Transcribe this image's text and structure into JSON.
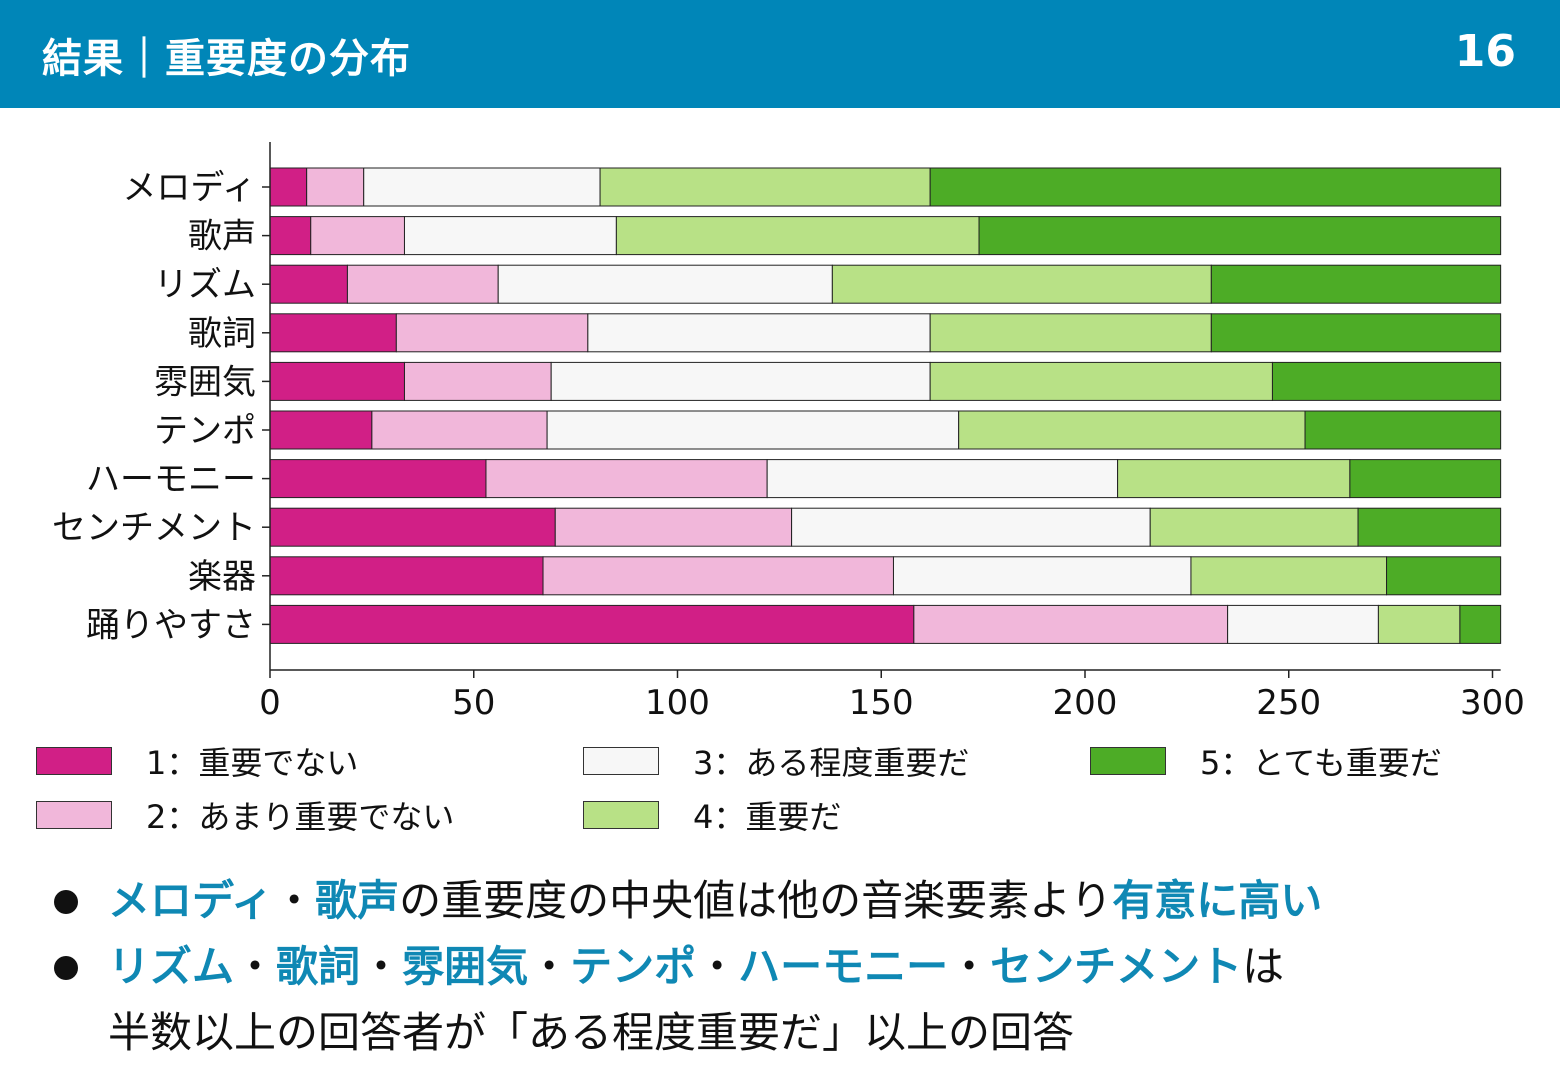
{
  "header": {
    "title": "結果｜重要度の分布",
    "page_number": "16"
  },
  "colors": {
    "header_bg": "#0086b8",
    "highlight": "#0f88b4"
  },
  "chart_data": {
    "type": "bar",
    "orientation": "horizontal",
    "stacked": true,
    "categories": [
      "メロディ",
      "歌声",
      "リズム",
      "歌詞",
      "雰囲気",
      "テンポ",
      "ハーモニー",
      "センチメント",
      "楽器",
      "踊りやすさ"
    ],
    "series": [
      {
        "name": "1：重要でない",
        "color": "#d11f86",
        "values": [
          9,
          10,
          19,
          31,
          33,
          25,
          53,
          70,
          67,
          158
        ]
      },
      {
        "name": "2：あまり重要でない",
        "color": "#f1b7da",
        "values": [
          14,
          23,
          37,
          47,
          36,
          43,
          69,
          58,
          86,
          77
        ]
      },
      {
        "name": "3：ある程度重要だ",
        "color": "#f7f7f7",
        "values": [
          58,
          52,
          82,
          84,
          93,
          101,
          86,
          88,
          73,
          37
        ]
      },
      {
        "name": "4：重要だ",
        "color": "#b8e186",
        "values": [
          81,
          89,
          93,
          69,
          84,
          85,
          57,
          51,
          48,
          20
        ]
      },
      {
        "name": "5：とても重要だ",
        "color": "#4dac26",
        "values": [
          140,
          128,
          71,
          71,
          56,
          48,
          37,
          35,
          28,
          10
        ]
      }
    ],
    "xlim": [
      0,
      302
    ],
    "xticks": [
      0,
      50,
      100,
      150,
      200,
      250,
      300
    ],
    "xlabel": "",
    "ylabel": "",
    "grid": false,
    "legend_position": "bottom"
  },
  "bullets": [
    [
      {
        "text": "メロディ",
        "highlight": true
      },
      {
        "text": "・",
        "highlight": false
      },
      {
        "text": "歌声",
        "highlight": true
      },
      {
        "text": "の重要度の中央値は他の音楽要素より",
        "highlight": false
      },
      {
        "text": "有意に高い",
        "highlight": true
      }
    ],
    [
      {
        "text": "リズム",
        "highlight": true
      },
      {
        "text": "・",
        "highlight": false
      },
      {
        "text": "歌詞",
        "highlight": true
      },
      {
        "text": "・",
        "highlight": false
      },
      {
        "text": "雰囲気",
        "highlight": true
      },
      {
        "text": "・",
        "highlight": false
      },
      {
        "text": "テンポ",
        "highlight": true
      },
      {
        "text": "・",
        "highlight": false
      },
      {
        "text": "ハーモニー",
        "highlight": true
      },
      {
        "text": "・",
        "highlight": false
      },
      {
        "text": "センチメント",
        "highlight": true
      },
      {
        "text": "は",
        "highlight": false
      },
      {
        "text": "半数以上の回答者が「ある程度重要だ」以上の回答",
        "highlight": false,
        "newline": true
      }
    ]
  ]
}
